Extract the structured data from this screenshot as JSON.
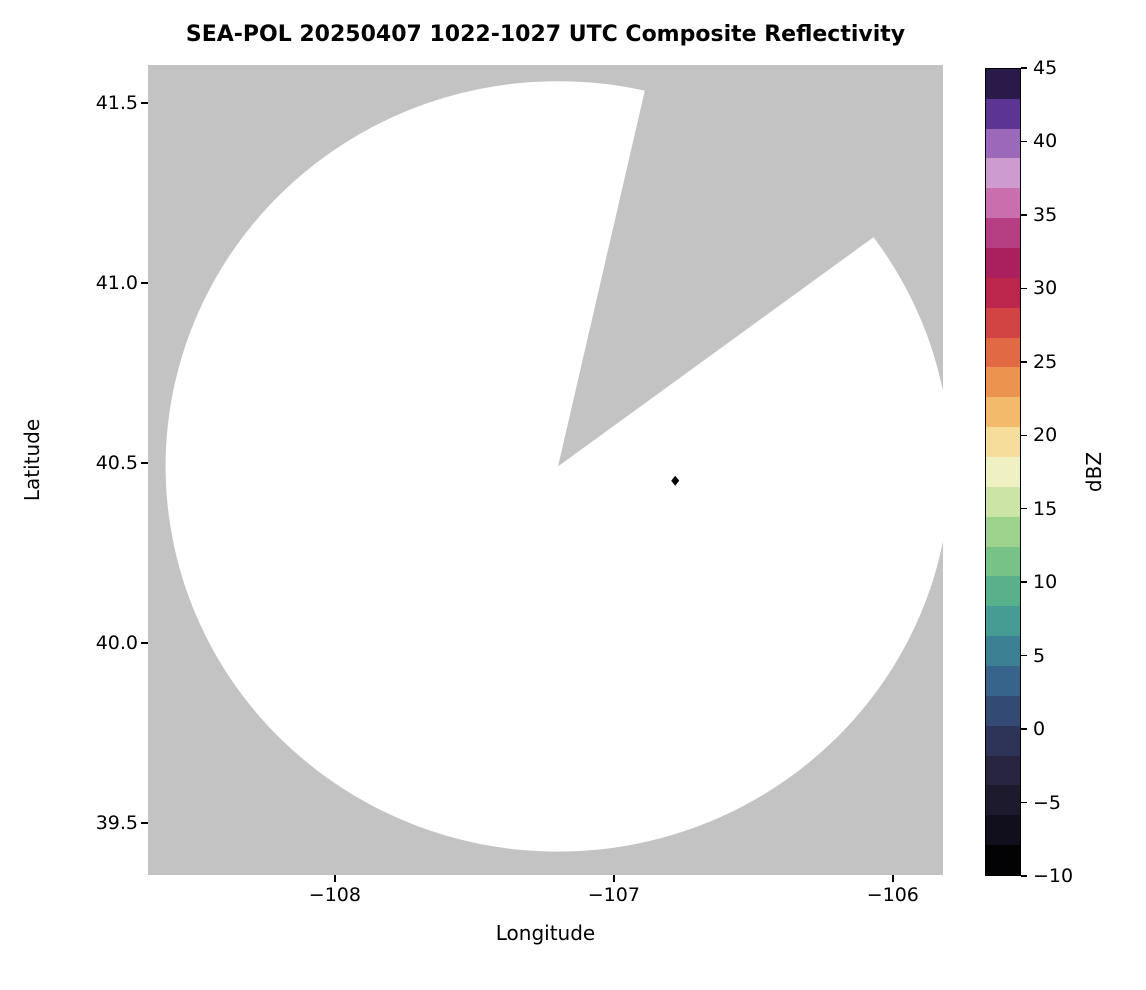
{
  "chart_data": {
    "type": "heatmap",
    "title": "SEA-POL 20250407 1022-1027 UTC Composite Reflectivity",
    "xlabel": "Longitude",
    "ylabel": "Latitude",
    "xlim": [
      -108.67,
      -105.82
    ],
    "ylim": [
      39.355,
      41.605
    ],
    "xticks": [
      -108,
      -107,
      -106
    ],
    "yticks": [
      39.5,
      40.0,
      40.5,
      41.0,
      41.5
    ],
    "grid": false,
    "colorbar": {
      "label": "dBZ",
      "min": -10,
      "max": 45,
      "ticks": [
        -10,
        -5,
        0,
        5,
        10,
        15,
        20,
        25,
        30,
        35,
        40,
        45
      ],
      "colors": [
        "#030305",
        "#120f1d",
        "#1e1a2e",
        "#272540",
        "#2e3458",
        "#334b74",
        "#36648b",
        "#3b8093",
        "#469c93",
        "#58b18b",
        "#76c287",
        "#9dd28d",
        "#cce4a5",
        "#f0f1c2",
        "#f6dd9b",
        "#f2ba6a",
        "#ec934f",
        "#e16a45",
        "#d24343",
        "#bd264c",
        "#aa1f5e",
        "#b63f83",
        "#c96fad",
        "#cd9bcf",
        "#9c68ba",
        "#5c3494",
        "#2a1a4a"
      ]
    },
    "radar_coverage": {
      "description": "White circular radar coverage area on gray no-data background with a missing (gray) azimuthal sector",
      "center_lon": -107.2,
      "center_lat": 40.49,
      "radius_deg_lat": 1.07,
      "missing_sector_azimuth_deg": [
        13,
        54
      ],
      "no_data_color": "#c3c3c3",
      "coverage_color": "#ffffff"
    },
    "marker": {
      "lon": -106.78,
      "lat": 40.45,
      "shape": "diamond",
      "color": "#000000"
    }
  }
}
